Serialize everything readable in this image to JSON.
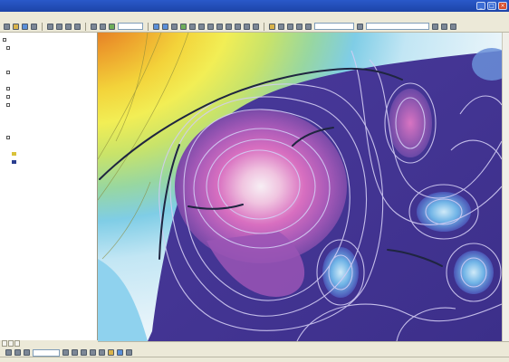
{
  "window": {
    "title": "",
    "minimize": "_",
    "maximize": "□",
    "close": "×"
  },
  "menu": [
    "",
    "",
    "",
    "",
    "",
    "",
    "",
    "",
    ""
  ],
  "toolbar": {
    "scale": "",
    "layer_combo": ""
  },
  "toc": {
    "items": [
      {
        "label": "",
        "type": "group"
      },
      {
        "label": "",
        "type": "layer"
      },
      {
        "label": "",
        "type": "sub"
      },
      {
        "label": "",
        "type": "sub"
      },
      {
        "label": "",
        "type": "layer"
      },
      {
        "label": "",
        "type": "sub"
      },
      {
        "label": "",
        "type": "layer"
      },
      {
        "label": "",
        "type": "layer"
      },
      {
        "label": "",
        "type": "layer"
      },
      {
        "label": "",
        "type": "sub"
      },
      {
        "label": "",
        "type": "sub"
      },
      {
        "label": "",
        "type": "sub",
        "selected": true
      },
      {
        "label": "",
        "type": "layer"
      },
      {
        "label": "",
        "type": "sub"
      },
      {
        "label": "",
        "type": "legend",
        "color": "#d9c23a"
      },
      {
        "label": "",
        "type": "legend",
        "color": "#2a3e8f"
      }
    ]
  },
  "toc_tabs": [
    "",
    "",
    ""
  ],
  "drawing": {
    "label": "",
    "font": ""
  },
  "status": {
    "coordinates": ""
  },
  "colors": {
    "contour_line": "#c9c3f0",
    "fault_line": "#1f2540",
    "peak": "#f5e8f0",
    "basin": "#3a2f8c"
  }
}
